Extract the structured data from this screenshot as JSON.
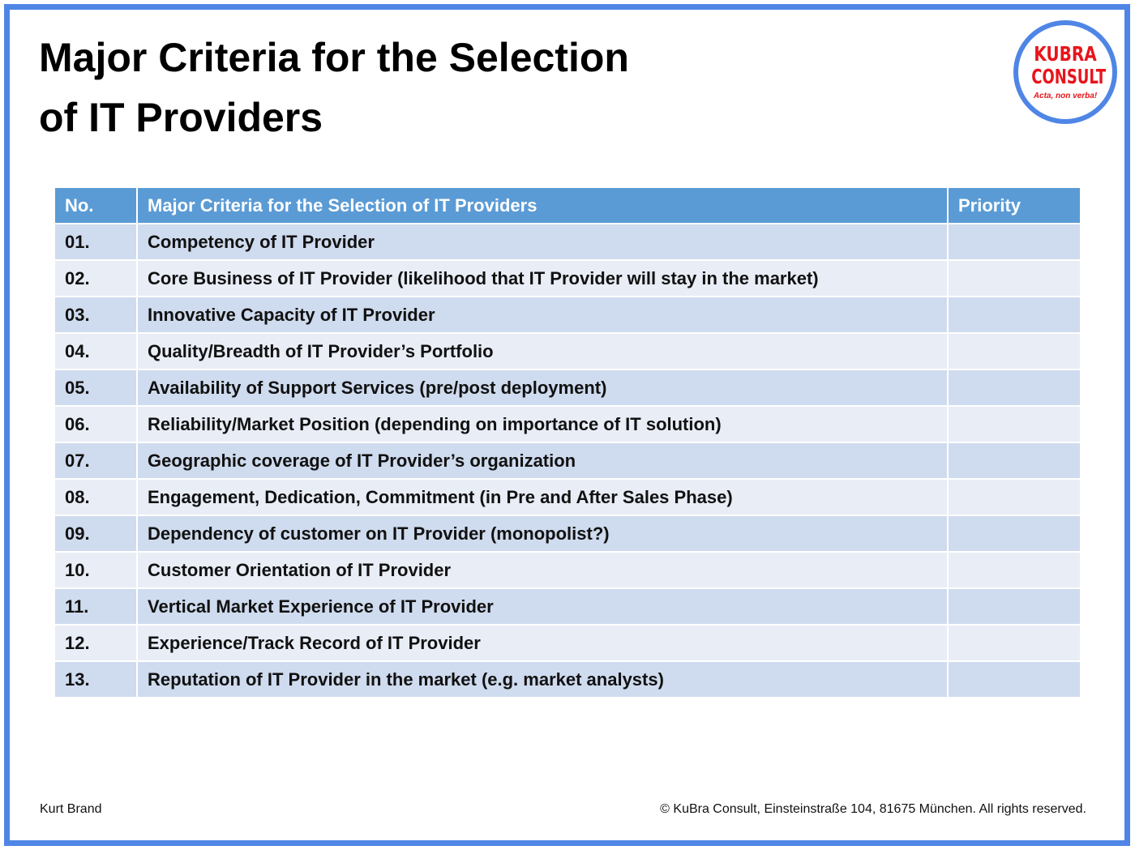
{
  "header": {
    "title": "Major Criteria for the Selection of IT Providers"
  },
  "logo": {
    "line1": "KUBRA",
    "line2": "CONSULT",
    "motto": "Acta, non verba!"
  },
  "table": {
    "columns": [
      "No.",
      "Major Criteria for the Selection of IT Providers",
      "Priority"
    ],
    "rows": [
      [
        "01.",
        "Competency of IT Provider"
      ],
      [
        "02.",
        "Core Business of IT Provider (likelihood that IT Provider will stay in the market)"
      ],
      [
        "03.",
        "Innovative Capacity of IT Provider"
      ],
      [
        "04.",
        "Quality/Breadth of IT Provider’s Portfolio"
      ],
      [
        "05.",
        "Availability of Support Services (pre/post deployment)"
      ],
      [
        "06.",
        "Reliability/Market Position (depending on importance of IT solution)"
      ],
      [
        "07.",
        "Geographic coverage of IT Provider’s organization"
      ],
      [
        "08.",
        "Engagement, Dedication, Commitment (in Pre and After Sales Phase)"
      ],
      [
        "09.",
        "Dependency of customer on IT Provider (monopolist?)"
      ],
      [
        "10.",
        "Customer Orientation of IT Provider"
      ],
      [
        "11.",
        "Vertical Market Experience of IT Provider"
      ],
      [
        "12.",
        "Experience/Track Record of IT Provider"
      ],
      [
        "13.",
        "Reputation of IT Provider in the market (e.g. market analysts)"
      ]
    ]
  },
  "footer": {
    "author": "Kurt Brand",
    "copyright": "© KuBra Consult, Einsteinstraße 104, 81675 München. All rights reserved."
  }
}
